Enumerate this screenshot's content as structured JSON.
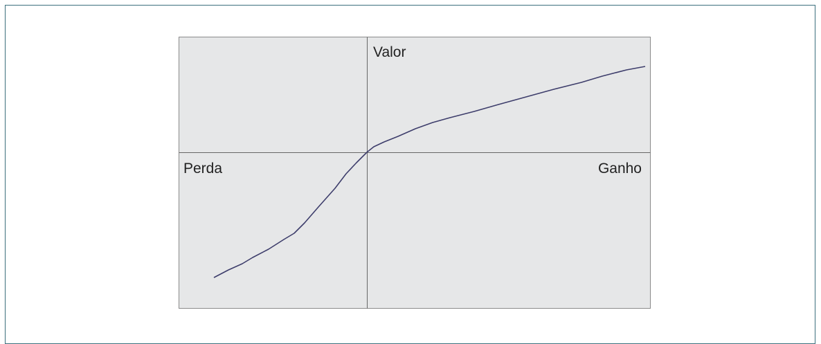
{
  "labels": {
    "y_axis": "Valor",
    "negative_x": "Perda",
    "positive_x": "Ganho"
  }
}
